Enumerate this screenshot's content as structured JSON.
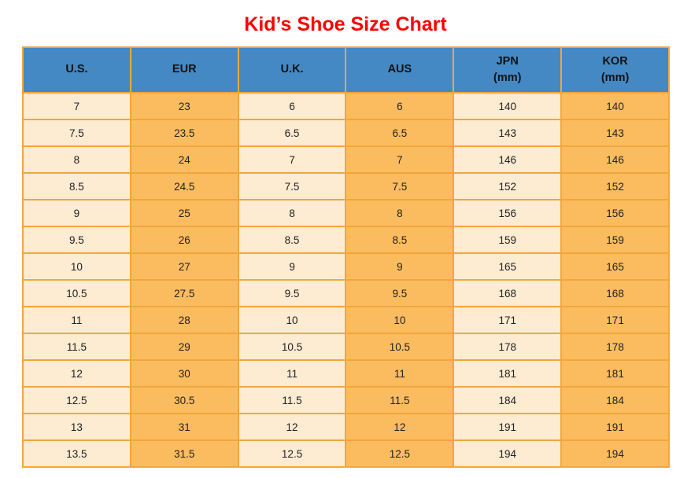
{
  "page": {
    "title": "Kid’s Shoe Size Chart"
  },
  "colors": {
    "title": "#FF0000",
    "header_bg": "#4489C4",
    "cell_light": "#FDEBD2",
    "cell_dark": "#FBBC5F",
    "border": "#F2A63C",
    "text": "#222222"
  },
  "table": {
    "columns": [
      {
        "label": "U.S.",
        "sub": ""
      },
      {
        "label": "EUR",
        "sub": ""
      },
      {
        "label": "U.K.",
        "sub": ""
      },
      {
        "label": "AUS",
        "sub": ""
      },
      {
        "label": "JPN",
        "sub": "(mm)"
      },
      {
        "label": "KOR",
        "sub": "(mm)"
      }
    ],
    "rows": [
      [
        "7",
        "23",
        "6",
        "6",
        "140",
        "140"
      ],
      [
        "7.5",
        "23.5",
        "6.5",
        "6.5",
        "143",
        "143"
      ],
      [
        "8",
        "24",
        "7",
        "7",
        "146",
        "146"
      ],
      [
        "8.5",
        "24.5",
        "7.5",
        "7.5",
        "152",
        "152"
      ],
      [
        "9",
        "25",
        "8",
        "8",
        "156",
        "156"
      ],
      [
        "9.5",
        "26",
        "8.5",
        "8.5",
        "159",
        "159"
      ],
      [
        "10",
        "27",
        "9",
        "9",
        "165",
        "165"
      ],
      [
        "10.5",
        "27.5",
        "9.5",
        "9.5",
        "168",
        "168"
      ],
      [
        "11",
        "28",
        "10",
        "10",
        "171",
        "171"
      ],
      [
        "11.5",
        "29",
        "10.5",
        "10.5",
        "178",
        "178"
      ],
      [
        "12",
        "30",
        "11",
        "11",
        "181",
        "181"
      ],
      [
        "12.5",
        "30.5",
        "11.5",
        "11.5",
        "184",
        "184"
      ],
      [
        "13",
        "31",
        "12",
        "12",
        "191",
        "191"
      ],
      [
        "13.5",
        "31.5",
        "12.5",
        "12.5",
        "194",
        "194"
      ]
    ]
  },
  "chart_data": {
    "type": "table",
    "title": "Kid’s Shoe Size Chart",
    "columns": [
      "U.S.",
      "EUR",
      "U.K.",
      "AUS",
      "JPN (mm)",
      "KOR (mm)"
    ],
    "rows": [
      [
        7,
        23,
        6,
        6,
        140,
        140
      ],
      [
        7.5,
        23.5,
        6.5,
        6.5,
        143,
        143
      ],
      [
        8,
        24,
        7,
        7,
        146,
        146
      ],
      [
        8.5,
        24.5,
        7.5,
        7.5,
        152,
        152
      ],
      [
        9,
        25,
        8,
        8,
        156,
        156
      ],
      [
        9.5,
        26,
        8.5,
        8.5,
        159,
        159
      ],
      [
        10,
        27,
        9,
        9,
        165,
        165
      ],
      [
        10.5,
        27.5,
        9.5,
        9.5,
        168,
        168
      ],
      [
        11,
        28,
        10,
        10,
        171,
        171
      ],
      [
        11.5,
        29,
        10.5,
        10.5,
        178,
        178
      ],
      [
        12,
        30,
        11,
        11,
        181,
        181
      ],
      [
        12.5,
        30.5,
        11.5,
        11.5,
        184,
        184
      ],
      [
        13,
        31,
        12,
        12,
        191,
        191
      ],
      [
        13.5,
        31.5,
        12.5,
        12.5,
        194,
        194
      ]
    ],
    "layout_hints": {
      "column_striping": [
        "light",
        "dark",
        "light",
        "dark",
        "light",
        "dark"
      ],
      "header_style": "blue-bold",
      "grid": true
    }
  }
}
